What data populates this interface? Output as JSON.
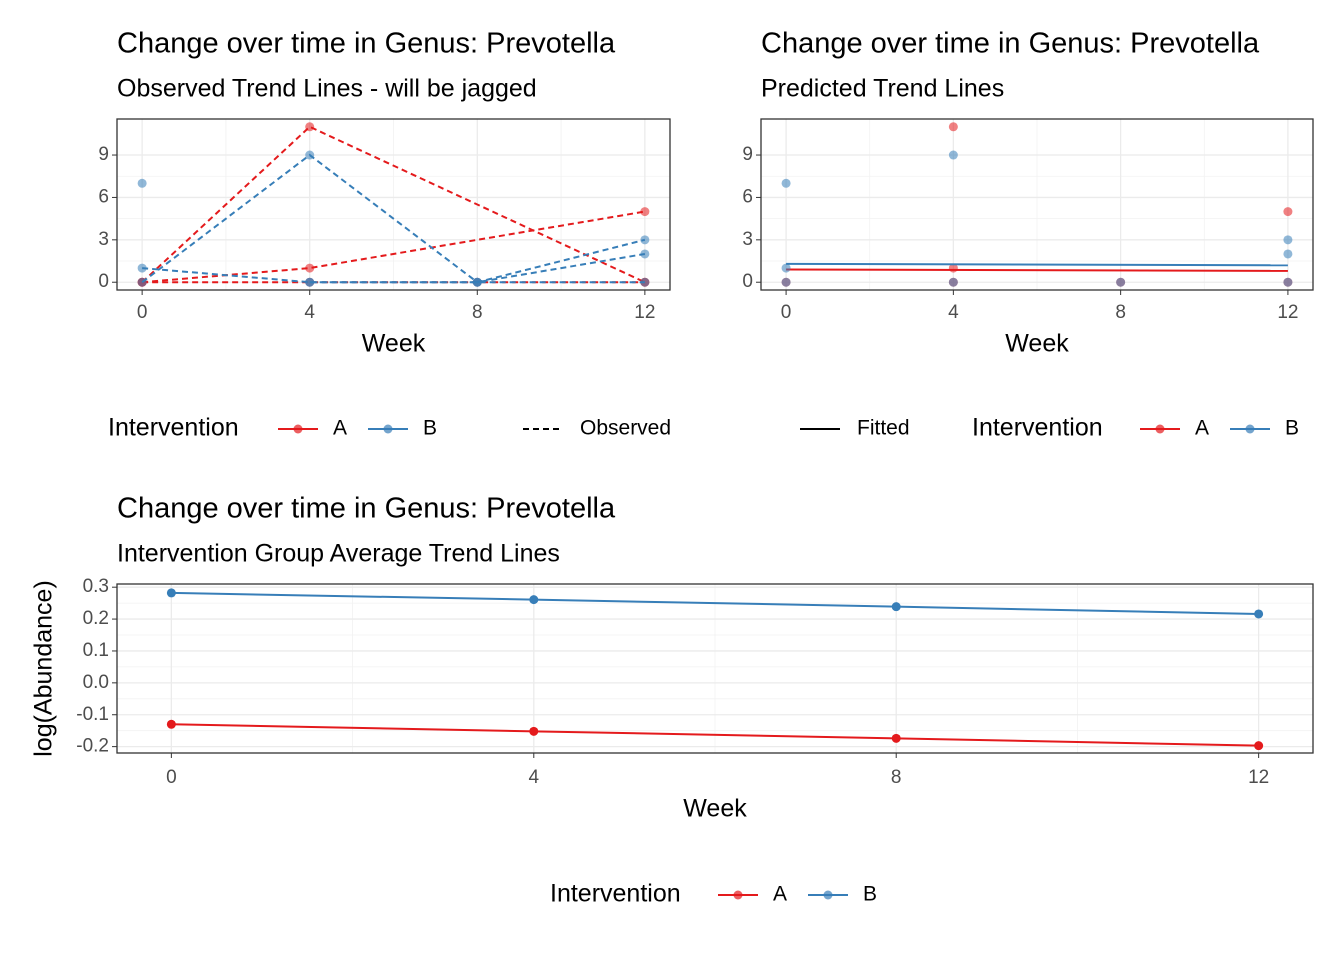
{
  "chart_data": [
    {
      "type": "line",
      "title": "Change over time in Genus: Prevotella",
      "subtitle": "Observed Trend Lines - will be jagged",
      "x_label": "Week",
      "xlim": [
        -0.6,
        12.6
      ],
      "xticks": [
        0,
        4,
        8,
        12
      ],
      "ylim": [
        -0.55,
        11.55
      ],
      "yticks": [
        0,
        3,
        6,
        9
      ],
      "grid": true,
      "line_style": "dashed",
      "legend_title": "Intervention",
      "linetype_label": "Observed",
      "series": [
        {
          "name": "A",
          "color": "#E41A1C",
          "subjects": [
            {
              "x": [
                0,
                4,
                12
              ],
              "values": [
                0,
                11,
                0
              ]
            },
            {
              "x": [
                0,
                4,
                12
              ],
              "values": [
                0,
                1,
                5
              ]
            },
            {
              "x": [
                0,
                4,
                8,
                12
              ],
              "values": [
                0,
                0,
                0,
                0
              ]
            }
          ]
        },
        {
          "name": "B",
          "color": "#377EB8",
          "subjects": [
            {
              "x": [
                0,
                4,
                8,
                12
              ],
              "values": [
                0,
                9,
                0,
                3
              ]
            },
            {
              "x": [
                0,
                4,
                8,
                12
              ],
              "values": [
                1,
                0,
                0,
                2
              ]
            },
            {
              "x": [
                4,
                8,
                12
              ],
              "values": [
                0,
                0,
                0
              ]
            },
            {
              "x": [
                0
              ],
              "values": [
                7
              ]
            }
          ]
        }
      ]
    },
    {
      "type": "line",
      "title": "Change over time in Genus: Prevotella",
      "subtitle": "Predicted Trend Lines",
      "x_label": "Week",
      "xlim": [
        -0.6,
        12.6
      ],
      "xticks": [
        0,
        4,
        8,
        12
      ],
      "ylim": [
        -0.55,
        11.55
      ],
      "yticks": [
        0,
        3,
        6,
        9
      ],
      "grid": true,
      "fitted_label": "Fitted",
      "legend_title": "Intervention",
      "series": [
        {
          "name": "A",
          "color": "#E41A1C",
          "points": {
            "x": [
              0,
              4,
              4,
              4,
              8,
              12,
              12
            ],
            "values": [
              0,
              11,
              1,
              0,
              0,
              5,
              0
            ]
          },
          "fitted": {
            "x": [
              0,
              12
            ],
            "values": [
              0.9,
              0.8
            ]
          }
        },
        {
          "name": "B",
          "color": "#377EB8",
          "points": {
            "x": [
              0,
              0,
              0,
              4,
              4,
              8,
              12,
              12,
              12
            ],
            "values": [
              7,
              1,
              0,
              9,
              0,
              0,
              3,
              2,
              0
            ]
          },
          "fitted": {
            "x": [
              0,
              12
            ],
            "values": [
              1.3,
              1.2
            ]
          }
        }
      ]
    },
    {
      "type": "line",
      "title": "Change over time in Genus: Prevotella",
      "subtitle": "Intervention Group Average Trend Lines",
      "x_label": "Week",
      "y_label": "log(Abundance)",
      "xlim": [
        -0.6,
        12.6
      ],
      "xticks": [
        0,
        4,
        8,
        12
      ],
      "ylim": [
        -0.22,
        0.31
      ],
      "yticks": [
        -0.2,
        -0.1,
        {
          "value": 0,
          "label": "0.0"
        },
        0.1,
        0.2,
        0.3
      ],
      "grid": true,
      "legend_title": "Intervention",
      "x": [
        0,
        4,
        8,
        12
      ],
      "series": [
        {
          "name": "A",
          "color": "#E41A1C",
          "values": [
            -0.13,
            -0.152,
            -0.174,
            -0.197
          ]
        },
        {
          "name": "B",
          "color": "#377EB8",
          "values": [
            0.282,
            0.261,
            0.239,
            0.216
          ]
        }
      ]
    }
  ]
}
